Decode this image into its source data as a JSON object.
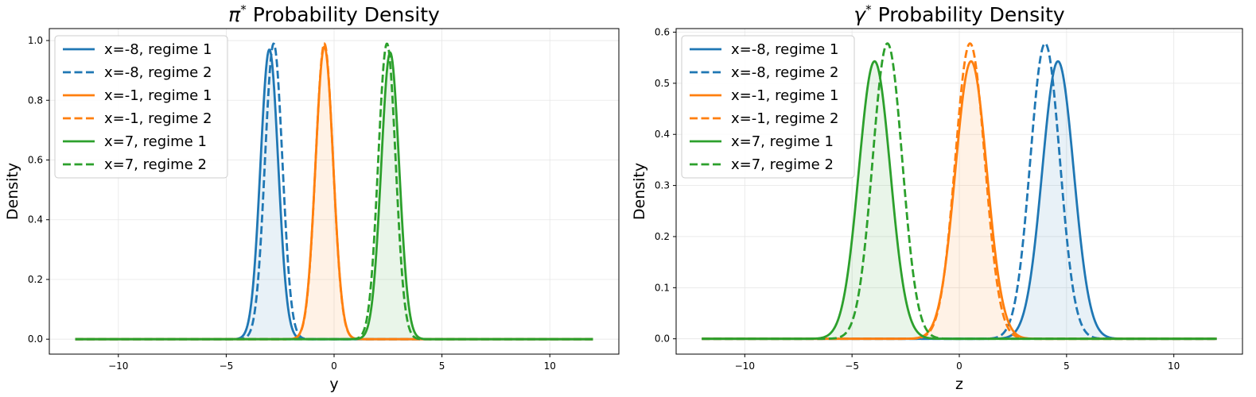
{
  "chart_data": [
    {
      "type": "line",
      "title": "π* Probability Density",
      "title_symbol": "π",
      "title_sup": "*",
      "title_rest": "Probability Density",
      "xlabel": "y",
      "ylabel": "Density",
      "xlim": [
        -13.2,
        13.2
      ],
      "ylim": [
        -0.05,
        1.04
      ],
      "xticks": [
        -10,
        -5,
        0,
        5,
        10
      ],
      "xtick_labels": [
        "−10",
        "−5",
        "0",
        "5",
        "10"
      ],
      "yticks": [
        0.0,
        0.2,
        0.4,
        0.6,
        0.8,
        1.0
      ],
      "ytick_labels": [
        "0.0",
        "0.2",
        "0.4",
        "0.6",
        "0.8",
        "1.0"
      ],
      "x_range": [
        -12,
        12
      ],
      "grid": true,
      "legend_position": "upper-left",
      "series": [
        {
          "name": "x=-8, regime 1",
          "color": "#1f77b4",
          "dash": "solid",
          "distribution": "normal",
          "mean": -3.0,
          "peak": 0.97
        },
        {
          "name": "x=-8, regime 2",
          "color": "#1f77b4",
          "dash": "dashed",
          "distribution": "normal",
          "mean": -2.8,
          "peak": 0.99
        },
        {
          "name": "x=-1, regime 1",
          "color": "#ff7f0e",
          "dash": "solid",
          "distribution": "normal",
          "mean": -0.45,
          "peak": 0.98
        },
        {
          "name": "x=-1, regime 2",
          "color": "#ff7f0e",
          "dash": "dashed",
          "distribution": "normal",
          "mean": -0.45,
          "peak": 0.99
        },
        {
          "name": "x=7, regime 1",
          "color": "#2ca02c",
          "dash": "solid",
          "distribution": "normal",
          "mean": 2.6,
          "peak": 0.96
        },
        {
          "name": "x=7, regime 2",
          "color": "#2ca02c",
          "dash": "dashed",
          "distribution": "normal",
          "mean": 2.45,
          "peak": 0.99
        }
      ]
    },
    {
      "type": "line",
      "title": "γ* Probability Density",
      "title_symbol": "γ",
      "title_sup": "*",
      "title_rest": "Probability Density",
      "xlabel": "z",
      "ylabel": "Density",
      "xlim": [
        -13.2,
        13.2
      ],
      "ylim": [
        -0.03,
        0.607
      ],
      "xticks": [
        -10,
        -5,
        0,
        5,
        10
      ],
      "xtick_labels": [
        "−10",
        "−5",
        "0",
        "5",
        "10"
      ],
      "yticks": [
        0.0,
        0.1,
        0.2,
        0.3,
        0.4,
        0.5,
        0.6
      ],
      "ytick_labels": [
        "0.0",
        "0.1",
        "0.2",
        "0.3",
        "0.4",
        "0.5",
        "0.6"
      ],
      "x_range": [
        -12,
        12
      ],
      "grid": true,
      "legend_position": "upper-left",
      "series": [
        {
          "name": "x=-8, regime 1",
          "color": "#1f77b4",
          "dash": "solid",
          "distribution": "normal",
          "mean": 4.6,
          "peak": 0.543
        },
        {
          "name": "x=-8, regime 2",
          "color": "#1f77b4",
          "dash": "dashed",
          "distribution": "normal",
          "mean": 4.0,
          "peak": 0.578
        },
        {
          "name": "x=-1, regime 1",
          "color": "#ff7f0e",
          "dash": "solid",
          "distribution": "normal",
          "mean": 0.55,
          "peak": 0.543
        },
        {
          "name": "x=-1, regime 2",
          "color": "#ff7f0e",
          "dash": "dashed",
          "distribution": "normal",
          "mean": 0.5,
          "peak": 0.578
        },
        {
          "name": "x=7, regime 1",
          "color": "#2ca02c",
          "dash": "solid",
          "distribution": "normal",
          "mean": -3.95,
          "peak": 0.543
        },
        {
          "name": "x=7, regime 2",
          "color": "#2ca02c",
          "dash": "dashed",
          "distribution": "normal",
          "mean": -3.35,
          "peak": 0.578
        }
      ]
    }
  ]
}
